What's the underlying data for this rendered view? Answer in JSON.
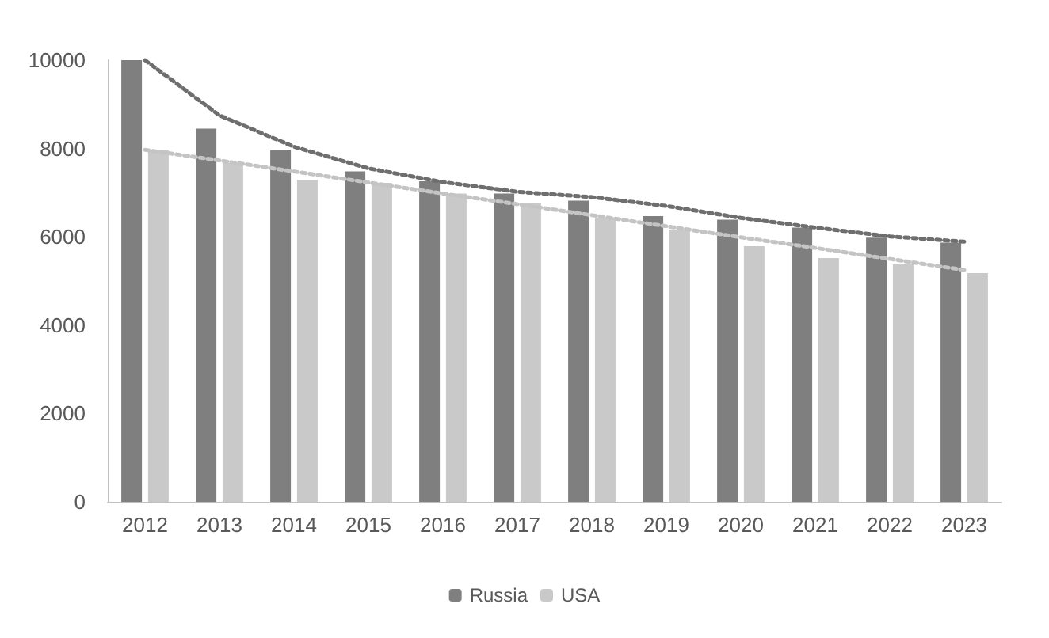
{
  "chart_data": {
    "type": "bar",
    "categories": [
      "2012",
      "2013",
      "2014",
      "2015",
      "2016",
      "2017",
      "2018",
      "2019",
      "2020",
      "2021",
      "2022",
      "2023"
    ],
    "series": [
      {
        "name": "Russia",
        "color": "#7f7f7f",
        "values": [
          10000,
          8450,
          7970,
          7480,
          7260,
          6980,
          6820,
          6470,
          6390,
          6210,
          5980,
          5870
        ]
      },
      {
        "name": "USA",
        "color": "#c9c9c9",
        "values": [
          7970,
          7670,
          7290,
          7220,
          6980,
          6770,
          6430,
          6160,
          5790,
          5520,
          5380,
          5180
        ]
      },
      {
        "type": "line",
        "color": "#6e6e6e",
        "line_style": "dotted",
        "marker": "none",
        "values": [
          10000,
          8750,
          8040,
          7550,
          7240,
          7020,
          6900,
          6700,
          6430,
          6210,
          6010,
          5890
        ]
      },
      {
        "type": "line",
        "color": "#c4c4c4",
        "line_style": "dotted",
        "marker": "none",
        "values": [
          7970,
          7730,
          7480,
          7230,
          6980,
          6740,
          6490,
          6240,
          5990,
          5750,
          5500,
          5250
        ]
      }
    ],
    "ylim": [
      0,
      10000
    ],
    "yticks": [
      0,
      2000,
      4000,
      6000,
      8000,
      10000
    ],
    "grid": false,
    "legend": "bottom"
  }
}
